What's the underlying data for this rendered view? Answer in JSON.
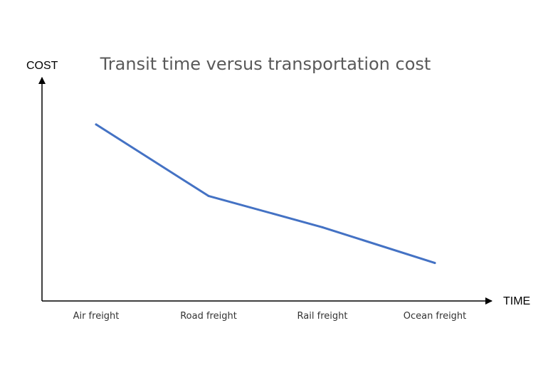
{
  "chart_data": {
    "type": "line",
    "title": "Transit time versus transportation cost",
    "xlabel": "TIME",
    "ylabel": "COST",
    "categories": [
      "Air freight",
      "Road freight",
      "Rail freight",
      "Ocean freight"
    ],
    "series": [
      {
        "values": [
          0.79,
          0.47,
          0.33,
          0.17
        ]
      }
    ],
    "ylim": [
      0,
      1
    ],
    "grid": false,
    "legend": "none",
    "colors": {
      "line": "#4472C4",
      "axes": "#000000"
    }
  }
}
